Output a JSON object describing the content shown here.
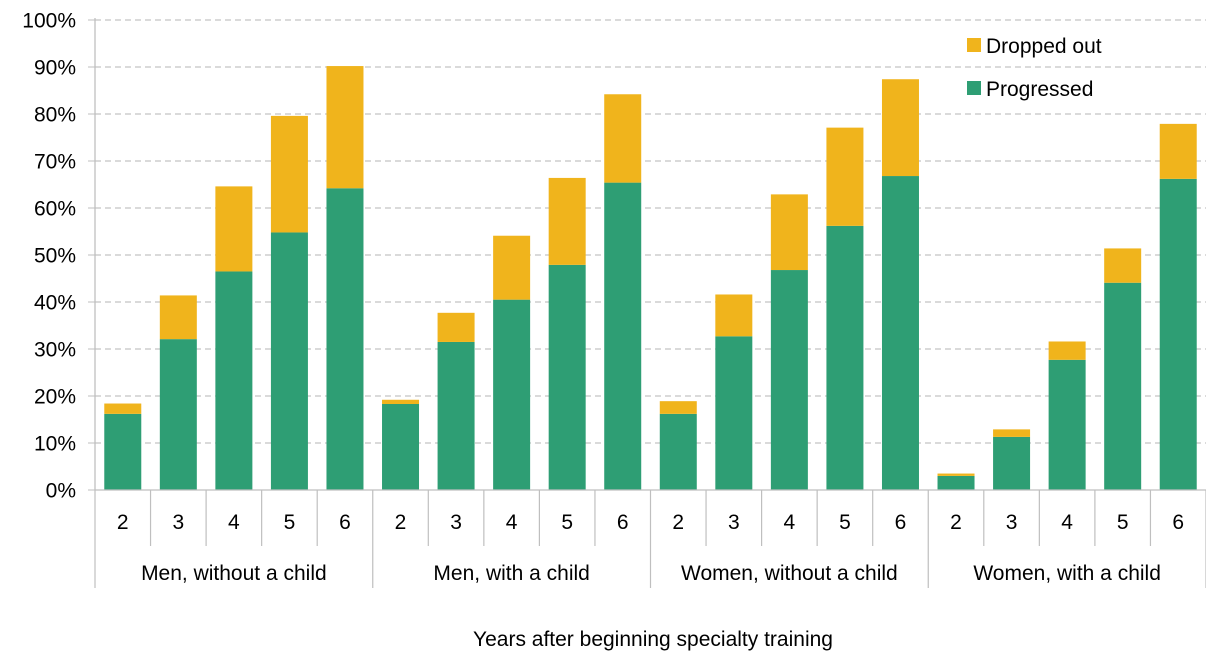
{
  "chart_data": {
    "type": "bar",
    "stacked": true,
    "title": "",
    "xlabel": "Years after beginning specialty training",
    "ylabel": "",
    "ylim": [
      0,
      100
    ],
    "yticks": [
      "0%",
      "10%",
      "20%",
      "30%",
      "40%",
      "50%",
      "60%",
      "70%",
      "80%",
      "90%",
      "100%"
    ],
    "grid": "horizontal dashed",
    "legend_position": "top-right",
    "groups": [
      {
        "label": "Men, without a child",
        "categories": [
          "2",
          "3",
          "4",
          "5",
          "6"
        ]
      },
      {
        "label": "Men, with a child",
        "categories": [
          "2",
          "3",
          "4",
          "5",
          "6"
        ]
      },
      {
        "label": "Women, without a child",
        "categories": [
          "2",
          "3",
          "4",
          "5",
          "6"
        ]
      },
      {
        "label": "Women, with a child",
        "categories": [
          "2",
          "3",
          "4",
          "5",
          "6"
        ]
      }
    ],
    "series": [
      {
        "name": "Progressed",
        "color": "#2e9e74",
        "values": [
          16.2,
          32.1,
          46.5,
          54.8,
          64.2,
          18.3,
          31.5,
          40.5,
          47.9,
          65.4,
          16.2,
          32.7,
          46.8,
          56.2,
          66.8,
          3.0,
          11.3,
          27.7,
          44.1,
          66.2
        ]
      },
      {
        "name": "Dropped out",
        "color": "#f0b41c",
        "values": [
          2.2,
          9.3,
          18.1,
          24.8,
          26.0,
          0.9,
          6.2,
          13.6,
          18.5,
          18.8,
          2.7,
          8.9,
          16.1,
          20.9,
          20.6,
          0.5,
          1.6,
          3.9,
          7.3,
          11.7
        ]
      }
    ],
    "legend_order": [
      "Dropped out",
      "Progressed"
    ]
  }
}
